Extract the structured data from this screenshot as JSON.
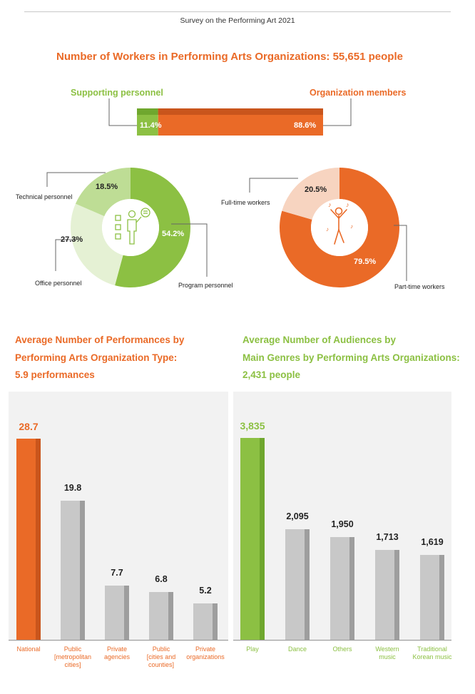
{
  "header": {
    "survey_title": "Survey on the Performing Art 2021"
  },
  "workers": {
    "title": "Number of Workers in Performing Arts Organizations: 55,651 people",
    "supporting_label": "Supporting personnel",
    "members_label": "Organization members",
    "supporting_pct": "11.4%",
    "members_pct": "88.6%"
  },
  "donut_left": {
    "labels": {
      "technical": "Technical personnel",
      "office": "Office personnel",
      "program": "Program personnel"
    },
    "pcts": {
      "technical": "18.5%",
      "office": "27.3%",
      "program": "54.2%"
    }
  },
  "donut_right": {
    "labels": {
      "fulltime": "Full-time workers",
      "parttime": "Part-time workers"
    },
    "pcts": {
      "fulltime": "20.5%",
      "parttime": "79.5%"
    }
  },
  "performances": {
    "title_lines": [
      "Average Number of Performances by",
      "Performing Arts Organization Type:",
      "5.9 performances"
    ]
  },
  "audiences": {
    "title_lines": [
      "Average Number of Audiences by",
      "Main Genres by Performing Arts Organizations:",
      "2,431 people"
    ]
  },
  "colors": {
    "orange": "#ea6a27",
    "green": "#8cc043",
    "gray": "#c8c8c8"
  },
  "chart_data": [
    {
      "type": "bar",
      "title": "Number of Workers in Performing Arts Organizations: 55,651 people",
      "orientation": "horizontal-stacked",
      "categories": [
        "Supporting personnel",
        "Organization members"
      ],
      "values": [
        11.4,
        88.6
      ],
      "value_labels": [
        "11.4%",
        "88.6%"
      ]
    },
    {
      "type": "pie",
      "style": "donut",
      "categories": [
        "Program personnel",
        "Office personnel",
        "Technical personnel"
      ],
      "values": [
        54.2,
        27.3,
        18.5
      ],
      "value_labels": [
        "54.2%",
        "27.3%",
        "18.5%"
      ]
    },
    {
      "type": "pie",
      "style": "donut",
      "categories": [
        "Part-time workers",
        "Full-time workers"
      ],
      "values": [
        79.5,
        20.5
      ],
      "value_labels": [
        "79.5%",
        "20.5%"
      ]
    },
    {
      "type": "bar",
      "title": "Average Number of Performances by Performing Arts Organization Type: 5.9 performances",
      "categories": [
        "National",
        "Public [metropolitan cities]",
        "Private agencies",
        "Public [cities and counties]",
        "Private organizations"
      ],
      "category_lines": [
        [
          "National"
        ],
        [
          "Public",
          "[metropolitan",
          "cities]"
        ],
        [
          "Private",
          "agencies"
        ],
        [
          "Public",
          "[cities and",
          "counties]"
        ],
        [
          "Private",
          "organizations"
        ]
      ],
      "values": [
        28.7,
        19.8,
        7.7,
        6.8,
        5.2
      ],
      "value_labels": [
        "28.7",
        "19.8",
        "7.7",
        "6.8",
        "5.2"
      ],
      "ylim": [
        0,
        30
      ],
      "highlight_index": 0
    },
    {
      "type": "bar",
      "title": "Average Number of Audiences by Main Genres by Performing Arts Organizations: 2,431 people",
      "categories": [
        "Play",
        "Dance",
        "Others",
        "Western music",
        "Traditional Korean music"
      ],
      "category_lines": [
        [
          "Play"
        ],
        [
          "Dance"
        ],
        [
          "Others"
        ],
        [
          "Western",
          "music"
        ],
        [
          "Traditional",
          "Korean music"
        ]
      ],
      "values": [
        3835,
        2095,
        1950,
        1713,
        1619
      ],
      "value_labels": [
        "3,835",
        "2,095",
        "1,950",
        "1,713",
        "1,619"
      ],
      "ylim": [
        0,
        4000
      ],
      "highlight_index": 0
    }
  ]
}
